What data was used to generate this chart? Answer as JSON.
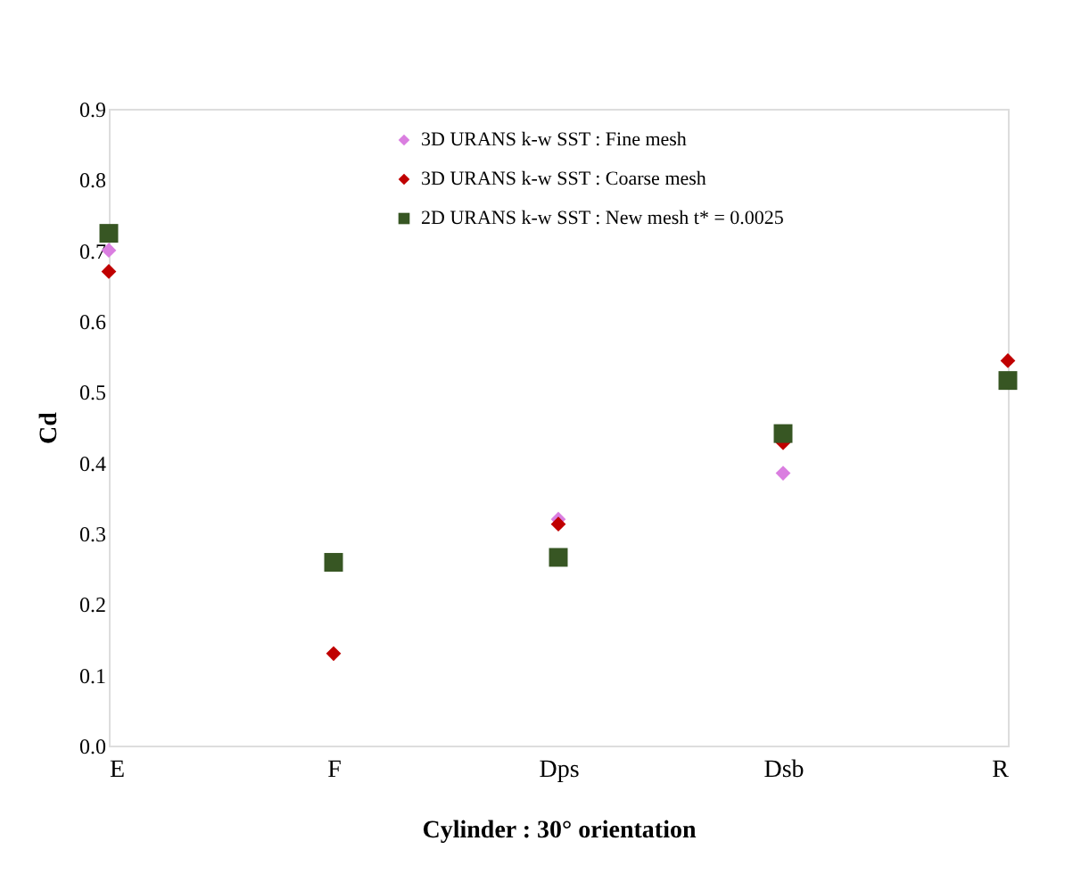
{
  "chart_data": {
    "type": "scatter",
    "xlabel": "Cylinder : 30° orientation",
    "ylabel": "Cd",
    "categories": [
      "E",
      "F",
      "Dps",
      "Dsb",
      "R"
    ],
    "ylim": [
      0,
      0.9
    ],
    "yticks": [
      {
        "value": 0,
        "label": "0.0"
      },
      0.1,
      0.2,
      0.3,
      0.4,
      0.5,
      0.6,
      0.7,
      0.8,
      0.9
    ],
    "grid": false,
    "legend": "top",
    "series": [
      {
        "name": "3D URANS k-w SST : Fine mesh",
        "color": "#da7ee0",
        "marker": "diamond",
        "values": [
          0.7,
          null,
          0.32,
          0.385,
          null
        ]
      },
      {
        "name": "3D URANS k-w SST : Coarse mesh",
        "color": "#c00000",
        "marker": "diamond",
        "values": [
          0.67,
          0.13,
          0.313,
          0.428,
          0.544
        ]
      },
      {
        "name": "2D URANS k-w SST : New mesh t* = 0.0025",
        "color": "#375623",
        "marker": "square",
        "values": [
          0.724,
          0.259,
          0.266,
          0.441,
          0.516
        ]
      }
    ]
  }
}
